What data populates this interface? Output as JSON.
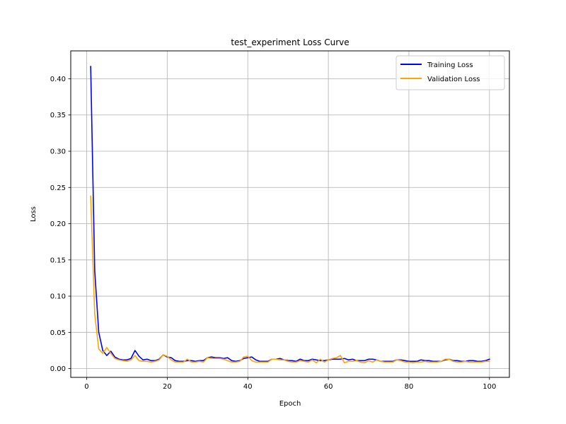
{
  "chart_data": {
    "type": "line",
    "title": "test_experiment Loss Curve",
    "xlabel": "Epoch",
    "ylabel": "Loss",
    "xlim": [
      -3.95,
      104.95
    ],
    "ylim": [
      -0.0121,
      0.4385
    ],
    "xticks": [
      0,
      20,
      40,
      60,
      80,
      100
    ],
    "xtick_labels": [
      "0",
      "20",
      "40",
      "60",
      "80",
      "100"
    ],
    "yticks": [
      0.0,
      0.05,
      0.1,
      0.15,
      0.2,
      0.25,
      0.3,
      0.35,
      0.4
    ],
    "ytick_labels": [
      "0.00",
      "0.05",
      "0.10",
      "0.15",
      "0.20",
      "0.25",
      "0.30",
      "0.35",
      "0.40"
    ],
    "grid": true,
    "legend_position": "top-right",
    "x": [
      1,
      2,
      3,
      4,
      5,
      6,
      7,
      8,
      9,
      10,
      11,
      12,
      13,
      14,
      15,
      16,
      17,
      18,
      19,
      20,
      21,
      22,
      23,
      24,
      25,
      26,
      27,
      28,
      29,
      30,
      31,
      32,
      33,
      34,
      35,
      36,
      37,
      38,
      39,
      40,
      41,
      42,
      43,
      44,
      45,
      46,
      47,
      48,
      49,
      50,
      51,
      52,
      53,
      54,
      55,
      56,
      57,
      58,
      59,
      60,
      61,
      62,
      63,
      64,
      65,
      66,
      67,
      68,
      69,
      70,
      71,
      72,
      73,
      74,
      75,
      76,
      77,
      78,
      79,
      80,
      81,
      82,
      83,
      84,
      85,
      86,
      87,
      88,
      89,
      90,
      91,
      92,
      93,
      94,
      95,
      96,
      97,
      98,
      99,
      100
    ],
    "series": [
      {
        "name": "Training Loss",
        "color": "#0000ff",
        "values": [
          0.417,
          0.135,
          0.05,
          0.025,
          0.018,
          0.024,
          0.016,
          0.013,
          0.012,
          0.012,
          0.014,
          0.025,
          0.017,
          0.012,
          0.013,
          0.011,
          0.011,
          0.013,
          0.019,
          0.016,
          0.015,
          0.011,
          0.01,
          0.01,
          0.011,
          0.011,
          0.01,
          0.011,
          0.011,
          0.015,
          0.016,
          0.015,
          0.015,
          0.014,
          0.015,
          0.011,
          0.01,
          0.011,
          0.014,
          0.015,
          0.016,
          0.012,
          0.01,
          0.01,
          0.01,
          0.013,
          0.013,
          0.014,
          0.012,
          0.011,
          0.011,
          0.01,
          0.013,
          0.011,
          0.011,
          0.013,
          0.012,
          0.011,
          0.011,
          0.012,
          0.013,
          0.013,
          0.013,
          0.014,
          0.012,
          0.013,
          0.011,
          0.011,
          0.011,
          0.013,
          0.013,
          0.012,
          0.01,
          0.01,
          0.01,
          0.01,
          0.012,
          0.012,
          0.011,
          0.01,
          0.01,
          0.01,
          0.012,
          0.011,
          0.011,
          0.01,
          0.01,
          0.01,
          0.012,
          0.013,
          0.011,
          0.011,
          0.01,
          0.01,
          0.011,
          0.011,
          0.01,
          0.01,
          0.011,
          0.013
        ]
      },
      {
        "name": "Validation Loss",
        "color": "#ffa500",
        "values": [
          0.238,
          0.075,
          0.027,
          0.021,
          0.029,
          0.021,
          0.014,
          0.012,
          0.011,
          0.01,
          0.012,
          0.018,
          0.011,
          0.01,
          0.01,
          0.009,
          0.01,
          0.012,
          0.019,
          0.017,
          0.012,
          0.009,
          0.009,
          0.009,
          0.013,
          0.009,
          0.009,
          0.01,
          0.009,
          0.015,
          0.014,
          0.014,
          0.014,
          0.013,
          0.011,
          0.009,
          0.009,
          0.01,
          0.016,
          0.017,
          0.011,
          0.009,
          0.009,
          0.009,
          0.009,
          0.013,
          0.013,
          0.012,
          0.012,
          0.01,
          0.009,
          0.009,
          0.011,
          0.01,
          0.009,
          0.012,
          0.008,
          0.013,
          0.009,
          0.012,
          0.014,
          0.015,
          0.018,
          0.008,
          0.01,
          0.01,
          0.011,
          0.009,
          0.008,
          0.011,
          0.009,
          0.012,
          0.01,
          0.009,
          0.009,
          0.009,
          0.012,
          0.011,
          0.009,
          0.009,
          0.008,
          0.009,
          0.009,
          0.01,
          0.009,
          0.009,
          0.009,
          0.01,
          0.013,
          0.013,
          0.01,
          0.009,
          0.009,
          0.01,
          0.009,
          0.009,
          0.009,
          0.009,
          0.01,
          0.01
        ]
      }
    ]
  }
}
